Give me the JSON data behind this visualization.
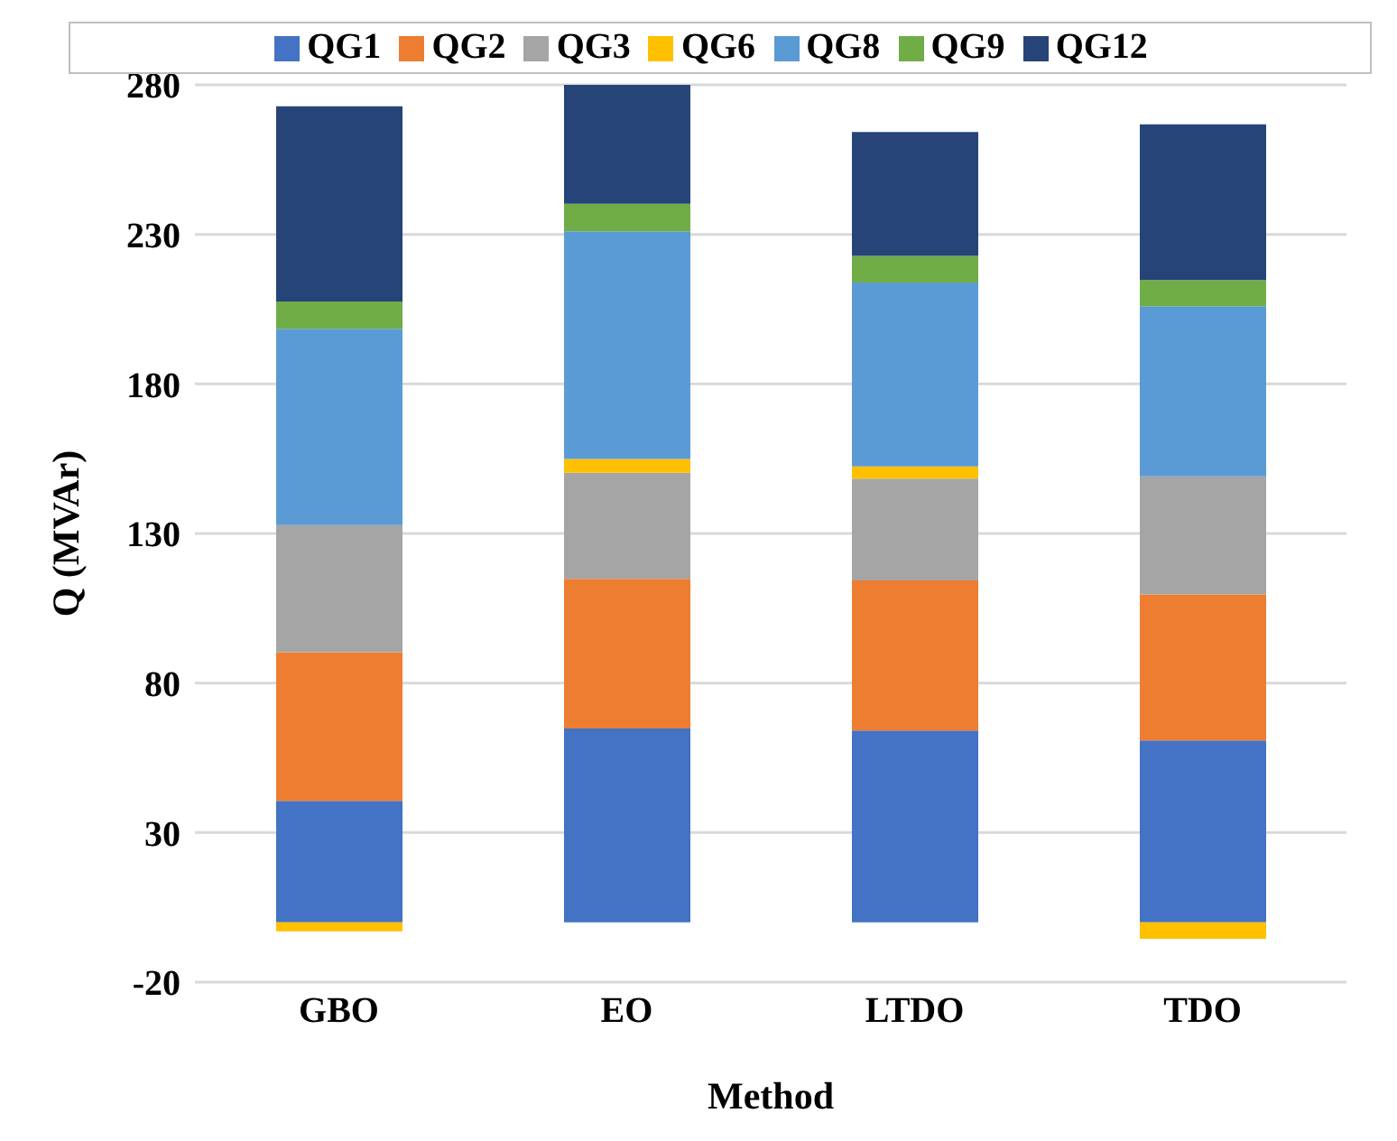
{
  "chart_data": {
    "type": "bar",
    "stacked": true,
    "xlabel": "Method",
    "ylabel": "Q (MVAr)",
    "categories": [
      "GBO",
      "EO",
      "LTDO",
      "TDO"
    ],
    "series": [
      {
        "name": "QG1",
        "color": "#4472c4",
        "values": [
          40.6,
          64.8,
          64.1,
          60.8
        ]
      },
      {
        "name": "QG2",
        "color": "#ed7d31",
        "values": [
          49.7,
          50,
          50.2,
          48.8
        ]
      },
      {
        "name": "QG3",
        "color": "#a5a5a5",
        "values": [
          42.5,
          35.5,
          34,
          39.5
        ]
      },
      {
        "name": "QG6",
        "color": "#ffc000",
        "values": [
          -3,
          4.6,
          4.1,
          -5.5
        ]
      },
      {
        "name": "QG8",
        "color": "#5b9bd5",
        "values": [
          65.6,
          76.1,
          61.5,
          56.9
        ]
      },
      {
        "name": "QG9",
        "color": "#70ad47",
        "values": [
          9.2,
          9.2,
          8.9,
          8.7
        ]
      },
      {
        "name": "QG12",
        "color": "#264478",
        "values": [
          65.2,
          39.8,
          41.4,
          52.1
        ]
      }
    ],
    "ylim": [
      -20,
      280
    ],
    "yticks": [
      -20,
      30,
      80,
      130,
      180,
      230,
      280
    ],
    "grid": "y",
    "legend": "top"
  }
}
